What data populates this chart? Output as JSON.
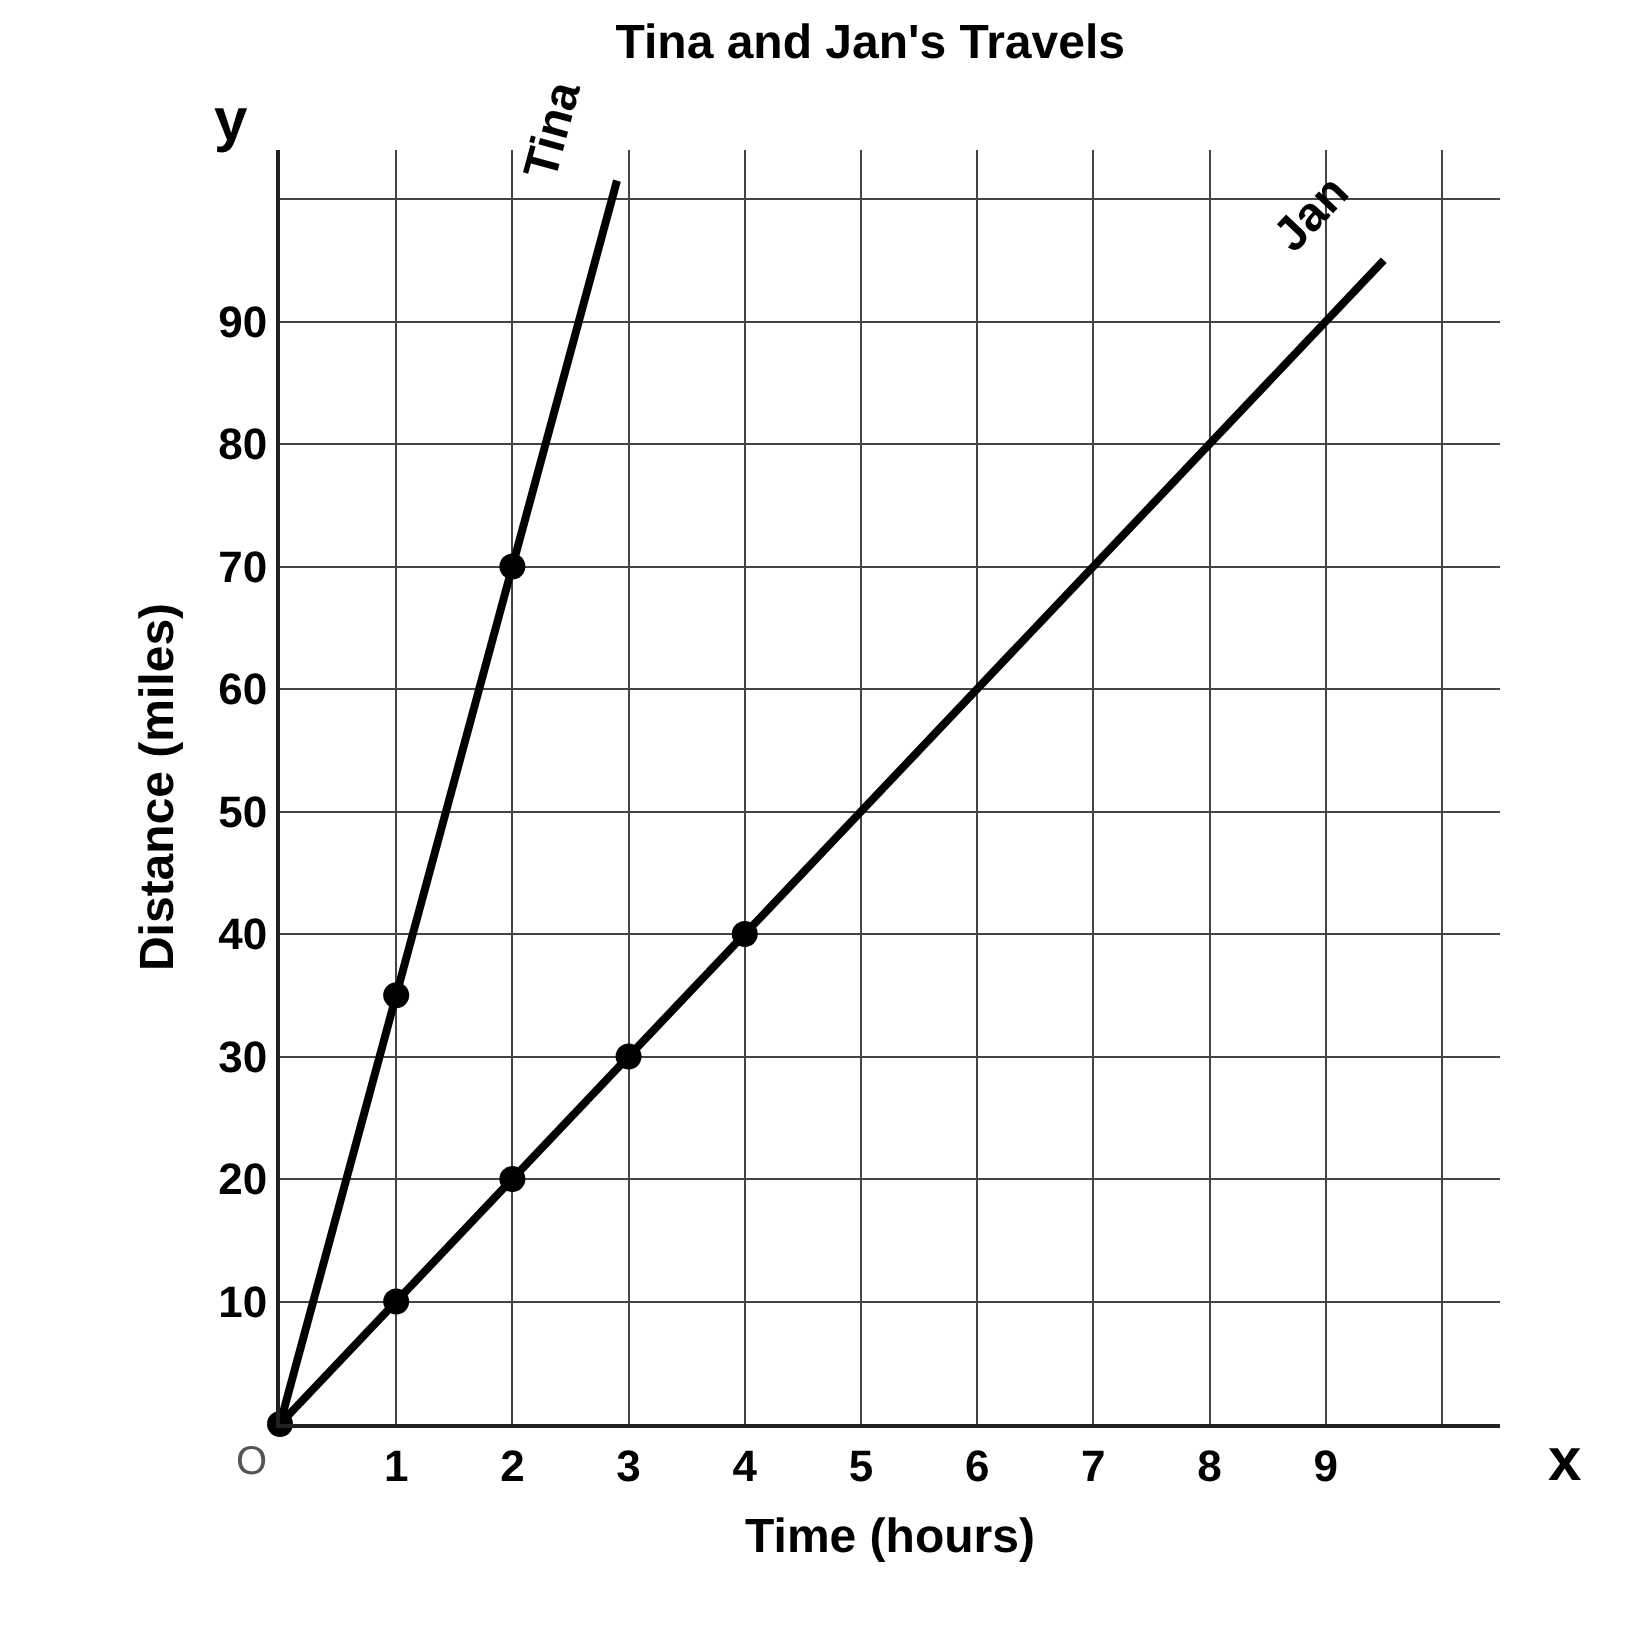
{
  "chart_data": {
    "type": "line",
    "title": "Tina and Jan's Travels",
    "xlabel": "Time (hours)",
    "ylabel": "Distance (miles)",
    "xlim": [
      0,
      10.5
    ],
    "ylim": [
      0,
      104
    ],
    "xticks": [
      1,
      2,
      3,
      4,
      5,
      6,
      7,
      8,
      9,
      {
        "value": 10,
        "label": null
      }
    ],
    "yticks": [
      10,
      20,
      30,
      40,
      50,
      60,
      70,
      80,
      90,
      {
        "value": 100,
        "label": null
      }
    ],
    "grid": true,
    "line_style": "solid",
    "series": [
      {
        "name": "Tina",
        "color": "#000000",
        "marker": "none",
        "x": [
          0,
          1,
          2,
          2.9
        ],
        "values": [
          0,
          35,
          70,
          101.5
        ]
      },
      {
        "name": "Jan",
        "color": "#000000",
        "marker": "none",
        "x": [
          0,
          1,
          2,
          3,
          4,
          9.5
        ],
        "values": [
          0,
          10,
          20,
          30,
          40,
          95
        ]
      },
      {
        "color": "#000000",
        "type": "scatter",
        "marker": "circle",
        "x": [
          0,
          1,
          2
        ],
        "values": [
          0,
          35,
          70
        ]
      },
      {
        "color": "#000000",
        "type": "scatter",
        "marker": "circle",
        "x": [
          1,
          2,
          3,
          4
        ],
        "values": [
          10,
          20,
          30,
          40
        ]
      }
    ],
    "annotations": [
      {
        "text": "O",
        "x": 0,
        "y": 0
      },
      "x",
      "y"
    ]
  }
}
